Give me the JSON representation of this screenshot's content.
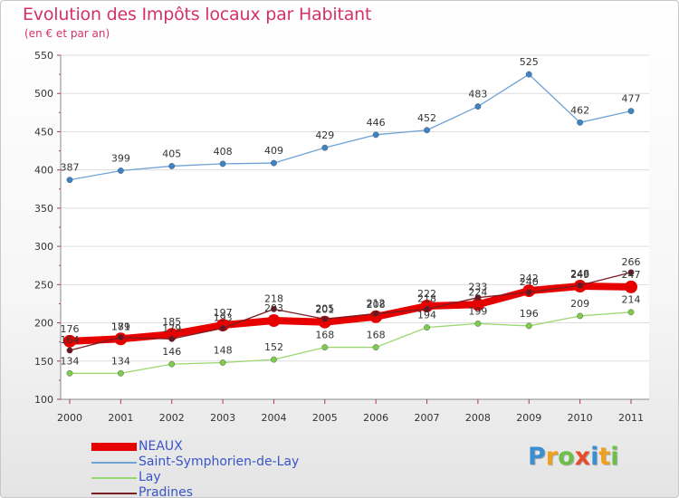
{
  "header": {
    "title": "Evolution des Impôts locaux par Habitant",
    "subtitle": "(en € et par an)"
  },
  "logo": {
    "text": "Proxiti",
    "letters": [
      "P",
      "r",
      "o",
      "x",
      "i",
      "t",
      "i"
    ]
  },
  "chart_data": {
    "type": "line",
    "title": "Evolution des Impôts locaux par Habitant",
    "subtitle": "(en € et par an)",
    "x": [
      "2000",
      "2001",
      "2002",
      "2003",
      "2004",
      "2005",
      "2006",
      "2007",
      "2008",
      "2009",
      "2010",
      "2011"
    ],
    "ylim": [
      100,
      550
    ],
    "yticks": [
      100,
      150,
      200,
      250,
      300,
      350,
      400,
      450,
      500,
      550
    ],
    "legend_position": "bottom-left",
    "series": [
      {
        "name": "NEAUX",
        "color": "#e60000",
        "values": [
          176,
          179,
          185,
          197,
          203,
          201,
          208,
          222,
          224,
          242,
          248,
          247
        ]
      },
      {
        "name": "Saint-Symphorien-de-Lay",
        "color": "#4d8fc9",
        "values": [
          387,
          399,
          405,
          408,
          409,
          429,
          446,
          452,
          483,
          525,
          462,
          477
        ]
      },
      {
        "name": "Lay",
        "color": "#8cd35e",
        "values": [
          134,
          134,
          146,
          148,
          152,
          168,
          168,
          194,
          199,
          196,
          209,
          214
        ]
      },
      {
        "name": "Pradines",
        "color": "#7a1e24",
        "values": [
          164,
          181,
          179,
          193,
          218,
          205,
          212,
          218,
          233,
          240,
          249,
          266
        ]
      }
    ]
  }
}
